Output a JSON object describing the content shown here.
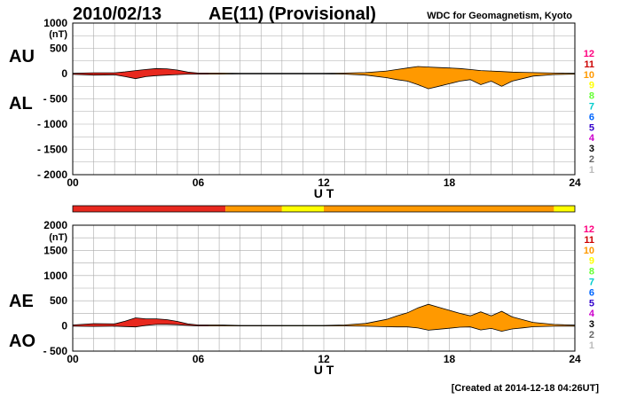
{
  "header": {
    "date": "2010/02/13",
    "title": "AE(11) (Provisional)",
    "source": "WDC for Geomagnetism, Kyoto"
  },
  "footer": {
    "created": "[Created at 2014-12-18 04:26UT]"
  },
  "level_scale": [
    "12",
    "11",
    "10",
    "9",
    "8",
    "7",
    "6",
    "5",
    "4",
    "3",
    "2",
    "1"
  ],
  "level_colors": {
    "12": "#ff0080",
    "11": "#cc0000",
    "10": "#ff9900",
    "9": "#ffff00",
    "8": "#66ff33",
    "7": "#00cccc",
    "6": "#0066ff",
    "5": "#3300cc",
    "4": "#cc00cc",
    "3": "#000000",
    "2": "#666666",
    "1": "#bbbbbb"
  },
  "chart_data": [
    {
      "type": "area",
      "name": "AU/AL",
      "labels": [
        "AU",
        "AL"
      ],
      "x_unit_label": "U T",
      "y_unit": "(nT)",
      "xlim": [
        0,
        24
      ],
      "ylim": [
        -2000,
        1000
      ],
      "x_ticks": [
        "00",
        "06",
        "12",
        "18",
        "24"
      ],
      "y_ticks": [
        "1000",
        "500",
        "0",
        "- 500",
        "- 1000",
        "- 1500",
        "- 2000"
      ],
      "grid": true,
      "series": [
        {
          "name": "AU",
          "x": [
            0,
            1,
            2,
            2.5,
            3,
            3.5,
            4,
            4.5,
            5,
            5.5,
            6,
            7,
            8,
            9,
            10,
            11,
            12,
            13,
            14,
            15,
            15.5,
            16,
            16.5,
            17,
            17.5,
            18,
            18.5,
            19,
            19.5,
            20,
            20.5,
            21,
            21.5,
            22,
            23,
            24
          ],
          "values": [
            5,
            15,
            15,
            35,
            60,
            80,
            100,
            95,
            70,
            30,
            10,
            10,
            5,
            5,
            5,
            5,
            5,
            10,
            20,
            50,
            80,
            110,
            140,
            130,
            120,
            110,
            100,
            80,
            60,
            50,
            40,
            30,
            25,
            20,
            10,
            5
          ]
        },
        {
          "name": "AL",
          "x": [
            0,
            1,
            2,
            2.5,
            3,
            3.5,
            4,
            4.5,
            5,
            5.5,
            6,
            7,
            8,
            9,
            10,
            11,
            12,
            13,
            14,
            15,
            15.5,
            16,
            16.5,
            17,
            17.5,
            18,
            18.5,
            19,
            19.5,
            20,
            20.5,
            21,
            21.5,
            22,
            23,
            24
          ],
          "values": [
            -15,
            -30,
            -25,
            -60,
            -100,
            -60,
            -40,
            -30,
            -20,
            -10,
            -10,
            -10,
            -5,
            -5,
            -5,
            -5,
            -5,
            -10,
            -30,
            -80,
            -120,
            -150,
            -220,
            -300,
            -250,
            -200,
            -150,
            -120,
            -220,
            -150,
            -250,
            -150,
            -100,
            -50,
            -20,
            -10
          ]
        }
      ]
    },
    {
      "type": "area",
      "name": "AE/AO",
      "labels": [
        "AE",
        "AO"
      ],
      "x_unit_label": "U T",
      "y_unit": "(nT)",
      "xlim": [
        0,
        24
      ],
      "ylim": [
        -500,
        2000
      ],
      "x_ticks": [
        "00",
        "06",
        "12",
        "18",
        "24"
      ],
      "y_ticks": [
        "2000",
        "1500",
        "1000",
        "500",
        "0",
        "- 500"
      ],
      "grid": true,
      "series": [
        {
          "name": "AE",
          "x": [
            0,
            1,
            2,
            2.5,
            3,
            3.5,
            4,
            4.5,
            5,
            5.5,
            6,
            7,
            8,
            9,
            10,
            11,
            12,
            13,
            14,
            15,
            15.5,
            16,
            16.5,
            17,
            17.5,
            18,
            18.5,
            19,
            19.5,
            20,
            20.5,
            21,
            21.5,
            22,
            23,
            24
          ],
          "values": [
            20,
            45,
            40,
            95,
            160,
            140,
            140,
            125,
            90,
            40,
            20,
            20,
            10,
            10,
            10,
            10,
            10,
            20,
            50,
            130,
            200,
            260,
            360,
            430,
            370,
            310,
            250,
            200,
            280,
            200,
            290,
            180,
            125,
            70,
            30,
            15
          ]
        },
        {
          "name": "AO",
          "x": [
            0,
            1,
            2,
            2.5,
            3,
            3.5,
            4,
            4.5,
            5,
            5.5,
            6,
            7,
            8,
            9,
            10,
            11,
            12,
            13,
            14,
            15,
            15.5,
            16,
            16.5,
            17,
            17.5,
            18,
            18.5,
            19,
            19.5,
            20,
            20.5,
            21,
            21.5,
            22,
            23,
            24
          ],
          "values": [
            -5,
            -8,
            -5,
            -12,
            -20,
            10,
            30,
            32,
            25,
            10,
            0,
            0,
            0,
            0,
            0,
            0,
            0,
            0,
            -5,
            -15,
            -20,
            -20,
            -40,
            -85,
            -65,
            -45,
            -25,
            -20,
            -80,
            -50,
            -105,
            -60,
            -38,
            -15,
            -5,
            -3
          ]
        }
      ]
    }
  ],
  "activity_bar": {
    "segments": [
      {
        "from": 0,
        "to": 7.3,
        "color": "#e8281e"
      },
      {
        "from": 7.3,
        "to": 10,
        "color": "#ff9900"
      },
      {
        "from": 10,
        "to": 12,
        "color": "#ffff00"
      },
      {
        "from": 12,
        "to": 23,
        "color": "#ff9900"
      },
      {
        "from": 23,
        "to": 24,
        "color": "#ffff00"
      }
    ]
  },
  "fill_segments": [
    {
      "from": 0,
      "to": 6.5,
      "color": "#e8281e"
    },
    {
      "from": 6.5,
      "to": 10,
      "color": "#ff9900"
    },
    {
      "from": 10,
      "to": 12,
      "color": "#ffff00"
    },
    {
      "from": 12,
      "to": 24,
      "color": "#ff9900"
    }
  ]
}
